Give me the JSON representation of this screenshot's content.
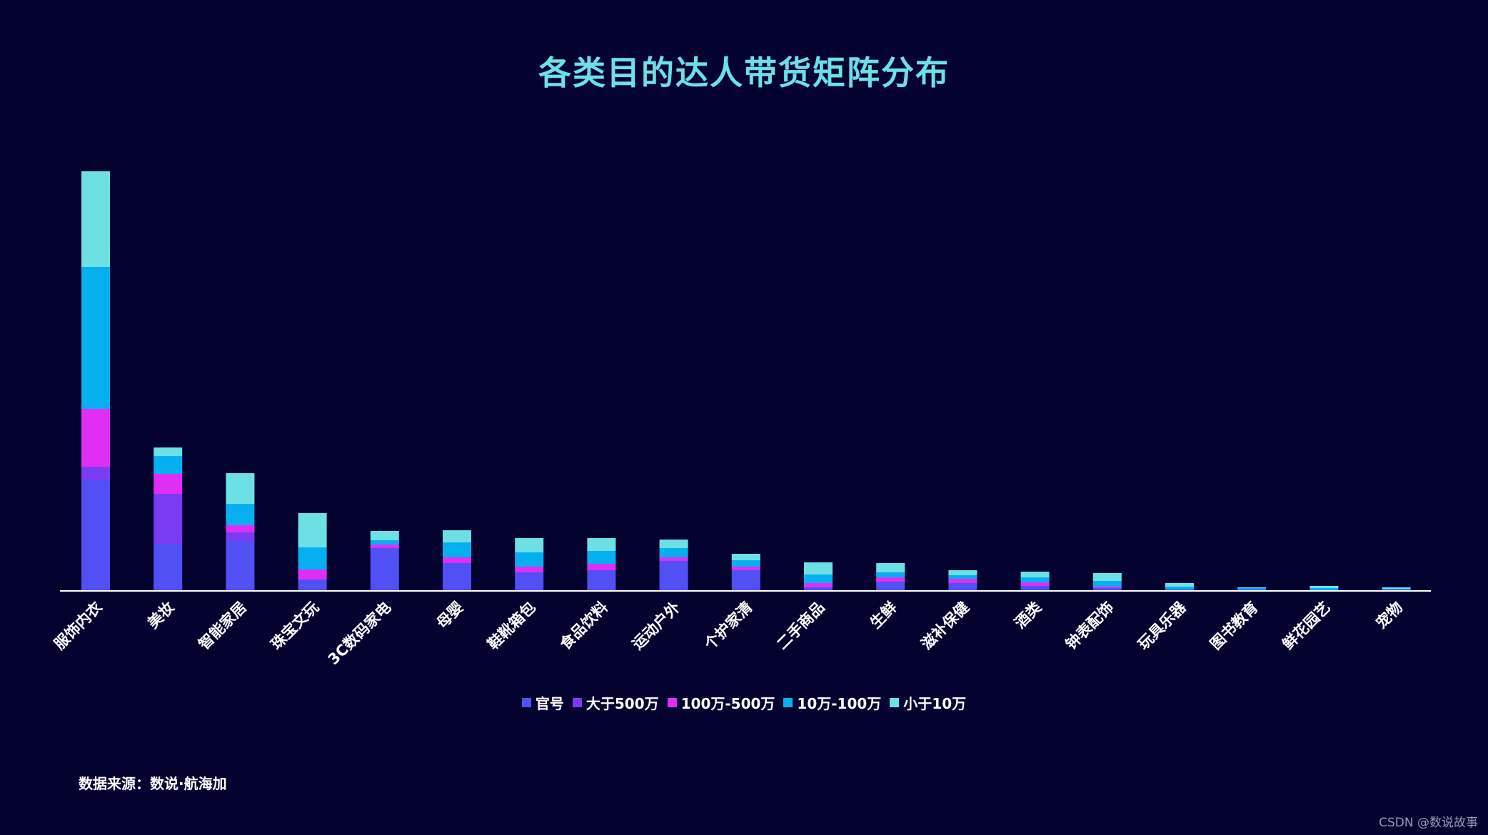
{
  "chart_data": {
    "type": "bar",
    "stacked": true,
    "title": "各类目的达人带货矩阵分布",
    "categories": [
      "服饰内衣",
      "美妆",
      "智能家居",
      "珠宝文玩",
      "3C数码家电",
      "母婴",
      "鞋靴箱包",
      "食品饮料",
      "运动户外",
      "个护家清",
      "二手商品",
      "生鲜",
      "滋补保健",
      "酒类",
      "钟表配饰",
      "玩具乐器",
      "图书教育",
      "鲜花园艺",
      "宠物"
    ],
    "series": [
      {
        "name": "官号",
        "color": "#5050f5",
        "values": [
          155,
          66,
          70,
          16,
          60,
          39,
          26,
          29,
          42,
          29,
          5,
          13,
          11,
          7,
          4,
          2,
          2,
          1,
          2
        ]
      },
      {
        "name": "大于500万",
        "color": "#7a3cf2",
        "values": [
          19,
          70,
          12,
          0,
          0,
          0,
          0,
          0,
          0,
          0,
          0,
          0,
          0,
          0,
          0,
          0,
          0,
          0,
          0
        ]
      },
      {
        "name": "100万-500万",
        "color": "#e02ef5",
        "values": [
          81,
          28,
          10,
          14,
          5,
          8,
          8,
          9,
          5,
          5,
          6,
          6,
          6,
          5,
          2,
          0,
          0,
          0,
          0
        ]
      },
      {
        "name": "10万-100万",
        "color": "#06b0f0",
        "values": [
          199,
          25,
          30,
          31,
          6,
          21,
          20,
          18,
          13,
          9,
          12,
          7,
          5,
          7,
          8,
          4,
          2,
          3,
          1
        ]
      },
      {
        "name": "小于10万",
        "color": "#6de0e6",
        "values": [
          134,
          12,
          43,
          48,
          13,
          17,
          20,
          18,
          12,
          9,
          17,
          13,
          7,
          8,
          11,
          5,
          1,
          3,
          2
        ]
      }
    ],
    "legend_position": "bottom-center",
    "grid": false,
    "ylim": [
      0,
      600
    ]
  },
  "source_note": "数据来源：数说·航海加",
  "watermark": "CSDN @数说故事",
  "colors": {
    "background": "#04022f",
    "title": "#6de0e6",
    "axis": "#ffffff",
    "text": "#ffffff"
  }
}
